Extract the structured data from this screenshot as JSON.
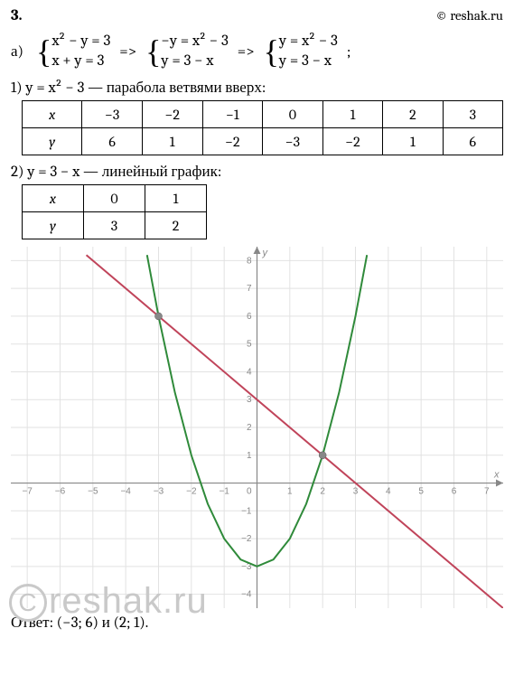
{
  "header": {
    "problem_num": "3.",
    "copyright": "© reshak.ru"
  },
  "equations": {
    "part_label": "а)",
    "system1_line1": "x² − y = 3",
    "system1_line2": "x + y = 3",
    "arrow": "=>",
    "system2_line1": "−y = x² − 3",
    "system2_line2": "y = 3 − x",
    "system3_line1": "y = x² − 3",
    "system3_line2": "y = 3 − x",
    "trailing": ";"
  },
  "parabola": {
    "desc": "1) y = x² − 3 — парабола ветвями вверх:",
    "x_label": "x",
    "y_label": "y",
    "x_vals": [
      "−3",
      "−2",
      "−1",
      "0",
      "1",
      "2",
      "3"
    ],
    "y_vals": [
      "6",
      "1",
      "−2",
      "−3",
      "−2",
      "1",
      "6"
    ]
  },
  "line": {
    "desc": "2) y = 3 − x — линейный график:",
    "x_label": "x",
    "y_label": "y",
    "x_vals": [
      "0",
      "1"
    ],
    "y_vals": [
      "3",
      "2"
    ]
  },
  "chart": {
    "xlim": [
      -7.5,
      7.5
    ],
    "ylim": [
      -4.5,
      8.5
    ],
    "xticks": [
      -7,
      -6,
      -5,
      -4,
      -3,
      -2,
      -1,
      1,
      2,
      3,
      4,
      5,
      6,
      7
    ],
    "yticks": [
      -4,
      -3,
      -2,
      -1,
      1,
      2,
      3,
      4,
      5,
      6,
      7,
      8
    ],
    "grid_color": "#e2e2e2",
    "axis_color": "#888888",
    "parabola_color": "#2f8a3a",
    "line_color": "#c0445a",
    "point_fill": "#888888",
    "intersections": [
      [
        -3,
        6
      ],
      [
        2,
        1
      ]
    ],
    "parabola_points": [
      [
        -3.35,
        8.2
      ],
      [
        -3,
        6
      ],
      [
        -2.5,
        3.25
      ],
      [
        -2,
        1
      ],
      [
        -1.5,
        -0.75
      ],
      [
        -1,
        -2
      ],
      [
        -0.5,
        -2.75
      ],
      [
        0,
        -3
      ],
      [
        0.5,
        -2.75
      ],
      [
        1,
        -2
      ],
      [
        1.5,
        -0.75
      ],
      [
        2,
        1
      ],
      [
        2.5,
        3.25
      ],
      [
        3,
        6
      ],
      [
        3.35,
        8.2
      ]
    ],
    "line_points": [
      [
        -5.2,
        8.2
      ],
      [
        7.5,
        -4.5
      ]
    ],
    "x_label": "x",
    "y_label": "y",
    "tick_fontsize": 10,
    "tick_color": "#888888"
  },
  "answer": "Ответ: (−3; 6) и (2; 1).",
  "watermark": "reshak.ru"
}
